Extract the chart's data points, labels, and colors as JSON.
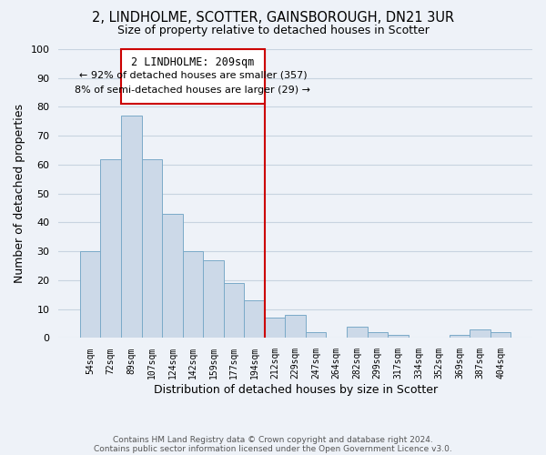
{
  "title": "2, LINDHOLME, SCOTTER, GAINSBOROUGH, DN21 3UR",
  "subtitle": "Size of property relative to detached houses in Scotter",
  "xlabel": "Distribution of detached houses by size in Scotter",
  "ylabel": "Number of detached properties",
  "bar_color": "#ccd9e8",
  "bar_edge_color": "#7aaac8",
  "bg_color": "#eef2f8",
  "grid_color": "#c8d4e0",
  "categories": [
    "54sqm",
    "72sqm",
    "89sqm",
    "107sqm",
    "124sqm",
    "142sqm",
    "159sqm",
    "177sqm",
    "194sqm",
    "212sqm",
    "229sqm",
    "247sqm",
    "264sqm",
    "282sqm",
    "299sqm",
    "317sqm",
    "334sqm",
    "352sqm",
    "369sqm",
    "387sqm",
    "404sqm"
  ],
  "values": [
    30,
    62,
    77,
    62,
    43,
    30,
    27,
    19,
    13,
    7,
    8,
    2,
    0,
    4,
    2,
    1,
    0,
    0,
    1,
    3,
    2
  ],
  "ylim": [
    0,
    100
  ],
  "yticks": [
    0,
    10,
    20,
    30,
    40,
    50,
    60,
    70,
    80,
    90,
    100
  ],
  "vline_color": "#cc0000",
  "annotation_title": "2 LINDHOLME: 209sqm",
  "annotation_line1": "← 92% of detached houses are smaller (357)",
  "annotation_line2": "8% of semi-detached houses are larger (29) →",
  "footer1": "Contains HM Land Registry data © Crown copyright and database right 2024.",
  "footer2": "Contains public sector information licensed under the Open Government Licence v3.0."
}
